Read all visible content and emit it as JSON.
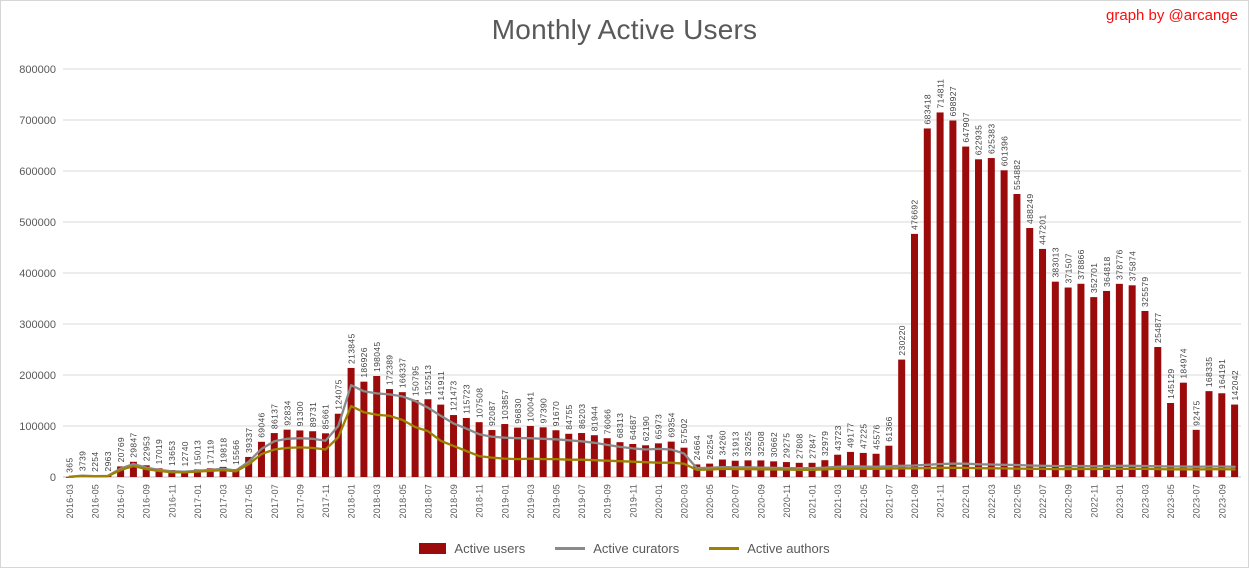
{
  "header": {
    "credit": "graph by @arcange"
  },
  "axes": {
    "yticks": [
      0,
      100000,
      200000,
      300000,
      400000,
      500000,
      600000,
      700000,
      800000
    ],
    "x_label_every": 2
  },
  "colors": {
    "bar": "#9b0b0b",
    "curators_line": "#8a8a8a",
    "authors_line": "#9d8100",
    "grid": "#d9d9d9",
    "axis": "#bfbfbf",
    "text": "#595959",
    "bar_label_text": "#424242",
    "title_text": "#595959",
    "credit_text": "#fb0e0e"
  },
  "chart_data": {
    "type": "bar",
    "title": "Monthly Active Users",
    "xlabel": "",
    "ylabel": "",
    "ylim": [
      0,
      800000
    ],
    "ytick_step": 100000,
    "grid": true,
    "legend_position": "bottom",
    "categories": [
      "2016-03",
      "2016-04",
      "2016-05",
      "2016-06",
      "2016-07",
      "2016-08",
      "2016-09",
      "2016-10",
      "2016-11",
      "2016-12",
      "2017-01",
      "2017-02",
      "2017-03",
      "2017-04",
      "2017-05",
      "2017-06",
      "2017-07",
      "2017-08",
      "2017-09",
      "2017-10",
      "2017-11",
      "2017-12",
      "2018-01",
      "2018-02",
      "2018-03",
      "2018-04",
      "2018-05",
      "2018-06",
      "2018-07",
      "2018-08",
      "2018-09",
      "2018-10",
      "2018-11",
      "2018-12",
      "2019-01",
      "2019-02",
      "2019-03",
      "2019-04",
      "2019-05",
      "2019-06",
      "2019-07",
      "2019-08",
      "2019-09",
      "2019-10",
      "2019-11",
      "2019-12",
      "2020-01",
      "2020-02",
      "2020-03",
      "2020-04",
      "2020-05",
      "2020-06",
      "2020-07",
      "2020-08",
      "2020-09",
      "2020-10",
      "2020-11",
      "2020-12",
      "2021-01",
      "2021-02",
      "2021-03",
      "2021-04",
      "2021-05",
      "2021-06",
      "2021-07",
      "2021-08",
      "2021-09",
      "2021-10",
      "2021-11",
      "2021-12",
      "2022-01",
      "2022-02",
      "2022-03",
      "2022-04",
      "2022-05",
      "2022-06",
      "2022-07",
      "2022-08",
      "2022-09",
      "2022-10",
      "2022-11",
      "2022-12",
      "2023-01",
      "2023-02",
      "2023-03",
      "2023-04",
      "2023-05",
      "2023-06",
      "2023-07",
      "2023-08",
      "2023-09",
      "2023-10"
    ],
    "series": [
      {
        "name": "Active users",
        "type": "bar",
        "color": "#9b0b0b",
        "data_labels": true,
        "values": [
          365,
          3739,
          2254,
          2963,
          20769,
          29847,
          22953,
          17019,
          13653,
          12740,
          15013,
          17119,
          19818,
          15566,
          39337,
          69046,
          86137,
          92834,
          91300,
          89731,
          85661,
          124075,
          213845,
          186926,
          198045,
          172389,
          166337,
          150795,
          152513,
          141911,
          121473,
          115723,
          107508,
          92087,
          103857,
          96830,
          100041,
          97390,
          91670,
          84755,
          86203,
          81944,
          76066,
          68313,
          64687,
          62190,
          65973,
          69354,
          57502,
          24664,
          26254,
          34260,
          31913,
          32625,
          32508,
          30662,
          29275,
          27808,
          27847,
          32979,
          43723,
          49177,
          47225,
          45576,
          61366,
          230220,
          476692,
          683418,
          714811,
          698927,
          647907,
          622935,
          625383,
          601396,
          554882,
          488249,
          447201,
          383013,
          371507,
          378866,
          352701,
          364818,
          378776,
          375874,
          325579,
          254877,
          145129,
          184974,
          92475,
          168335,
          164191,
          142042
        ]
      },
      {
        "name": "Active curators",
        "type": "line",
        "color": "#8a8a8a",
        "data_labels": false,
        "values": [
          300,
          2600,
          1600,
          2100,
          16500,
          25500,
          18500,
          14000,
          11200,
          10500,
          12200,
          14000,
          16000,
          12800,
          30000,
          55000,
          70000,
          75000,
          76000,
          75000,
          71000,
          100000,
          180000,
          168000,
          164000,
          162000,
          158000,
          149000,
          136000,
          120000,
          105000,
          95000,
          84000,
          79000,
          77000,
          76000,
          76000,
          75000,
          74000,
          72000,
          70000,
          67000,
          63000,
          59000,
          56000,
          54000,
          55000,
          54000,
          46000,
          17500,
          18000,
          19500,
          19000,
          19000,
          18500,
          18000,
          17500,
          17500,
          17500,
          18500,
          20000,
          21000,
          20500,
          20000,
          21000,
          22000,
          22500,
          24000,
          25500,
          26000,
          26000,
          25000,
          24500,
          24000,
          23500,
          22500,
          22000,
          21500,
          21000,
          21500,
          21000,
          21500,
          22000,
          22000,
          21500,
          21000,
          20500,
          20500,
          20000,
          20500,
          20500,
          20000
        ]
      },
      {
        "name": "Active authors",
        "type": "line",
        "color": "#9d8100",
        "data_labels": false,
        "values": [
          200,
          1900,
          1200,
          1600,
          13500,
          21500,
          15500,
          11800,
          9500,
          9000,
          10500,
          12000,
          13500,
          11000,
          25000,
          45000,
          54000,
          57000,
          58000,
          57000,
          54000,
          78000,
          139000,
          127000,
          122000,
          120000,
          112000,
          98000,
          90000,
          71000,
          61000,
          51000,
          41000,
          38000,
          36000,
          35000,
          36000,
          35000,
          35000,
          34000,
          34000,
          33000,
          32000,
          31000,
          30000,
          29000,
          28000,
          28000,
          26000,
          14000,
          14500,
          16000,
          15500,
          15500,
          15000,
          14800,
          14500,
          14200,
          14200,
          15000,
          16000,
          16500,
          16200,
          16000,
          16500,
          17000,
          17000,
          17500,
          18000,
          18000,
          17800,
          17200,
          17000,
          16800,
          16500,
          16000,
          15800,
          15500,
          15500,
          15800,
          15500,
          15800,
          16000,
          16000,
          15800,
          15500,
          15000,
          15200,
          14800,
          15200,
          15200,
          15000
        ]
      }
    ]
  }
}
